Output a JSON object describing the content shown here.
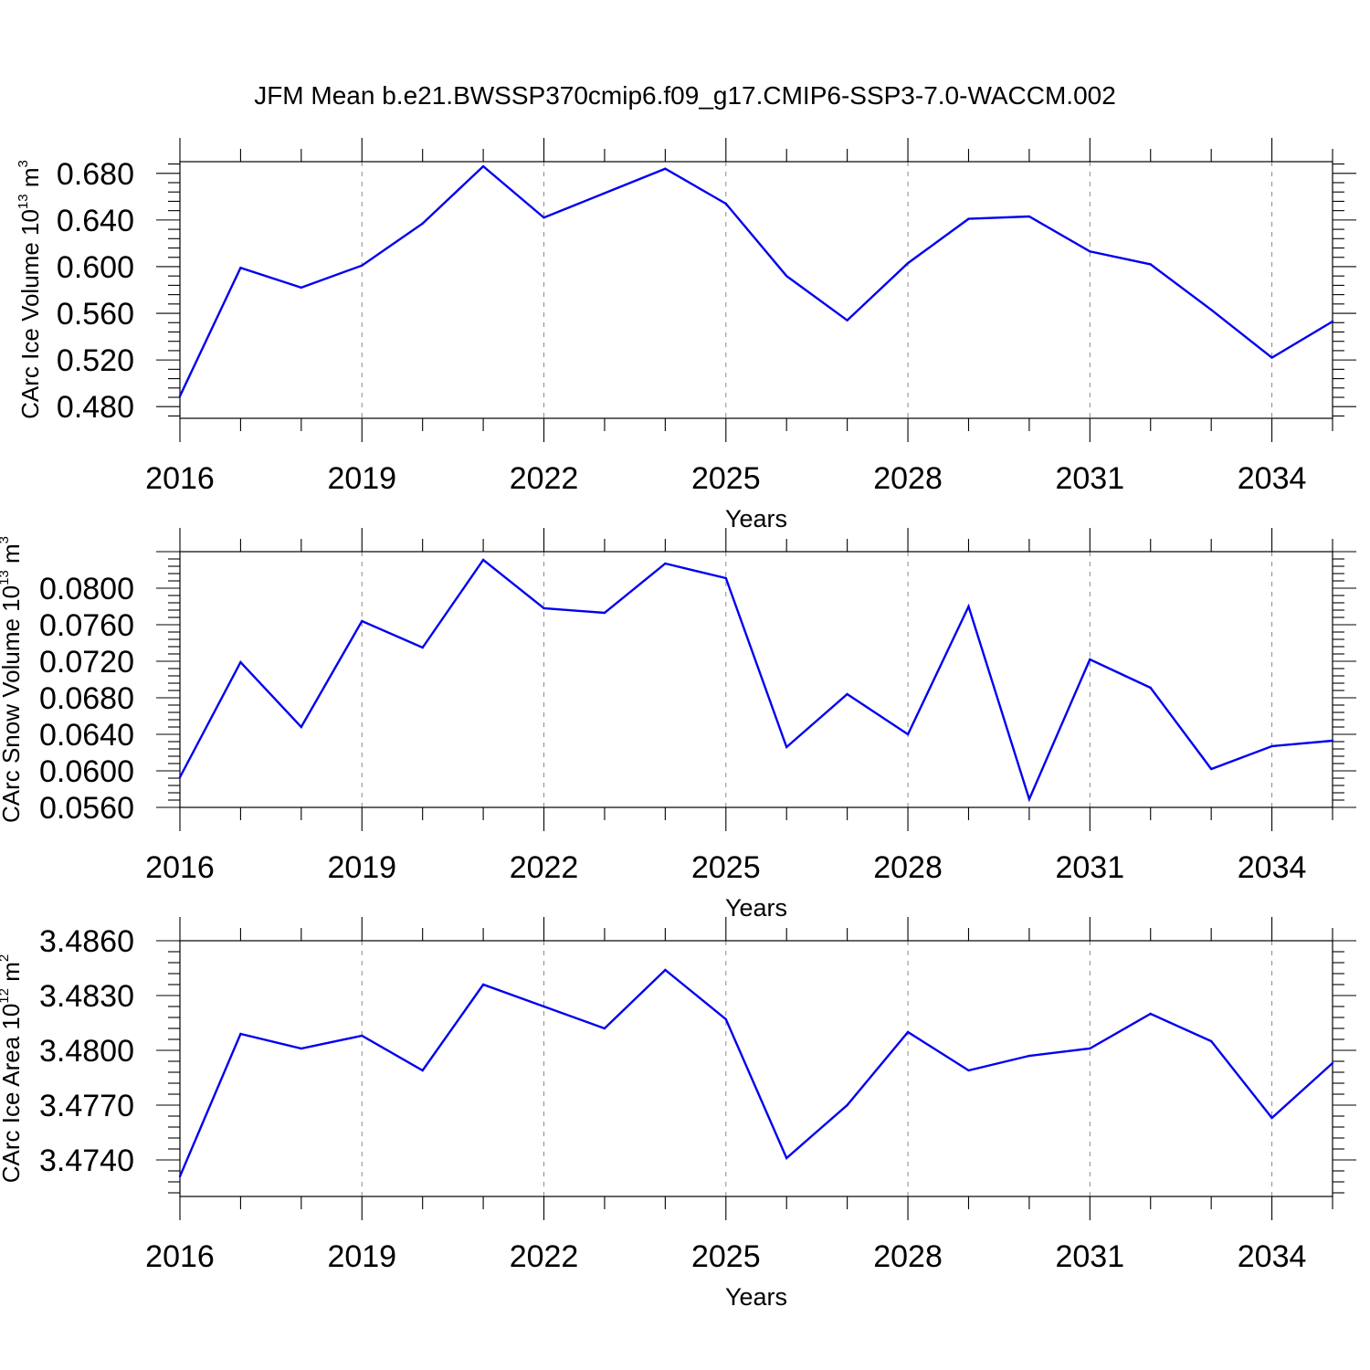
{
  "title": "JFM Mean b.e21.BWSSP370cmip6.f09_g17.CMIP6-SSP3-7.0-WACCM.002",
  "colors": {
    "line": "#0000f0",
    "grid": "#8a8a8a",
    "axis": "#000000"
  },
  "chart_data": [
    {
      "type": "line",
      "ylabel": {
        "main": "CArc Ice Volume 10",
        "exp": "13",
        "unit": " m",
        "unit_exp": "3"
      },
      "xlabel": "Years",
      "xlim": [
        2016,
        2035
      ],
      "ylim": [
        0.47,
        0.69
      ],
      "xticks": [
        2016,
        2019,
        2022,
        2025,
        2028,
        2031,
        2034
      ],
      "xtick_labels": [
        "2016",
        "2019",
        "2022",
        "2025",
        "2028",
        "2031",
        "2034"
      ],
      "yticks": [
        0.48,
        0.52,
        0.56,
        0.6,
        0.64,
        0.68
      ],
      "ytick_labels": [
        "0.480",
        "0.520",
        "0.560",
        "0.600",
        "0.640",
        "0.680"
      ],
      "grid": "vertical-dashed",
      "x": [
        2016,
        2017,
        2018,
        2019,
        2020,
        2021,
        2022,
        2023,
        2024,
        2025,
        2026,
        2027,
        2028,
        2029,
        2030,
        2031,
        2032,
        2033,
        2034,
        2035
      ],
      "values": [
        0.489,
        0.599,
        0.582,
        0.601,
        0.637,
        0.686,
        0.642,
        0.663,
        0.684,
        0.654,
        0.592,
        0.554,
        0.603,
        0.641,
        0.643,
        0.613,
        0.602,
        0.563,
        0.522,
        0.553
      ]
    },
    {
      "type": "line",
      "ylabel": {
        "main": "CArc Snow Volume 10",
        "exp": "13",
        "unit": " m",
        "unit_exp": "3"
      },
      "xlabel": "Years",
      "xlim": [
        2016,
        2035
      ],
      "ylim": [
        0.056,
        0.084
      ],
      "xticks": [
        2016,
        2019,
        2022,
        2025,
        2028,
        2031,
        2034
      ],
      "xtick_labels": [
        "2016",
        "2019",
        "2022",
        "2025",
        "2028",
        "2031",
        "2034"
      ],
      "yticks": [
        0.056,
        0.06,
        0.064,
        0.068,
        0.072,
        0.076,
        0.08
      ],
      "ytick_labels": [
        "0.0560",
        "0.0600",
        "0.0640",
        "0.0680",
        "0.0720",
        "0.0760",
        "0.0800"
      ],
      "grid": "vertical-dashed",
      "x": [
        2016,
        2017,
        2018,
        2019,
        2020,
        2021,
        2022,
        2023,
        2024,
        2025,
        2026,
        2027,
        2028,
        2029,
        2030,
        2031,
        2032,
        2033,
        2034,
        2035
      ],
      "values": [
        0.0593,
        0.0719,
        0.0648,
        0.0764,
        0.0735,
        0.0831,
        0.0778,
        0.0773,
        0.0827,
        0.0811,
        0.0626,
        0.0684,
        0.064,
        0.078,
        0.0569,
        0.0722,
        0.0691,
        0.0602,
        0.0627,
        0.0633
      ]
    },
    {
      "type": "line",
      "ylabel": {
        "main": "CArc Ice Area 10",
        "exp": "12",
        "unit": " m",
        "unit_exp": "2"
      },
      "xlabel": "Years",
      "xlim": [
        2016,
        2035
      ],
      "ylim": [
        3.472,
        3.486
      ],
      "xticks": [
        2016,
        2019,
        2022,
        2025,
        2028,
        2031,
        2034
      ],
      "xtick_labels": [
        "2016",
        "2019",
        "2022",
        "2025",
        "2028",
        "2031",
        "2034"
      ],
      "yticks": [
        3.474,
        3.477,
        3.48,
        3.483,
        3.486
      ],
      "ytick_labels": [
        "3.4740",
        "3.4770",
        "3.4800",
        "3.4830",
        "3.4860"
      ],
      "grid": "vertical-dashed",
      "x": [
        2016,
        2017,
        2018,
        2019,
        2020,
        2021,
        2022,
        2023,
        2024,
        2025,
        2026,
        2027,
        2028,
        2029,
        2030,
        2031,
        2032,
        2033,
        2034,
        2035
      ],
      "values": [
        3.4731,
        3.4809,
        3.4801,
        3.4808,
        3.4789,
        3.4836,
        3.4824,
        3.4812,
        3.4844,
        3.4817,
        3.4741,
        3.477,
        3.481,
        3.4789,
        3.4797,
        3.4801,
        3.482,
        3.4805,
        3.4763,
        3.4793
      ]
    }
  ]
}
